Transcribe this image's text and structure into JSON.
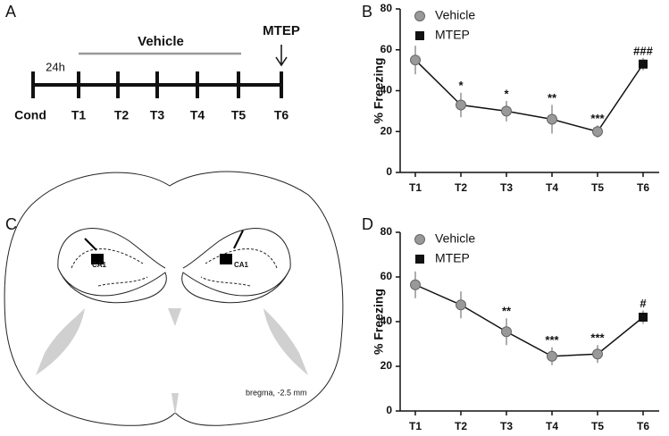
{
  "panels": [
    "A",
    "B",
    "C",
    "D"
  ],
  "timeline": {
    "labels": [
      "Cond",
      "T1",
      "T2",
      "T3",
      "T4",
      "T5",
      "T6"
    ],
    "interval": "24h",
    "treatment": "Vehicle",
    "challenge": "MTEP"
  },
  "atlas": {
    "region": "CA1",
    "coordinate": "bregma, -2.5 mm"
  },
  "chart_data": [
    {
      "type": "line",
      "ylabel": "% Freezing",
      "categories": [
        "T1",
        "T2",
        "T3",
        "T4",
        "T5",
        "T6"
      ],
      "ylim": [
        0,
        80
      ],
      "yticks": [
        0,
        20,
        40,
        60,
        80
      ],
      "series": [
        {
          "name": "Vehicle",
          "color": "#999999",
          "marker": "circle",
          "values": [
            55,
            33,
            30,
            26,
            20,
            null
          ],
          "errors": [
            7,
            6,
            5,
            7,
            3,
            null
          ]
        },
        {
          "name": "MTEP",
          "color": "#111111",
          "marker": "square",
          "values": [
            null,
            null,
            null,
            null,
            null,
            53
          ],
          "errors": [
            null,
            null,
            null,
            null,
            null,
            3
          ]
        }
      ],
      "significance": [
        null,
        "*",
        "*",
        "**",
        "***",
        "###"
      ]
    },
    {
      "type": "line",
      "ylabel": "% Freezing",
      "categories": [
        "T1",
        "T2",
        "T3",
        "T4",
        "T5",
        "T6"
      ],
      "ylim": [
        0,
        80
      ],
      "yticks": [
        0,
        20,
        40,
        60,
        80
      ],
      "series": [
        {
          "name": "Vehicle",
          "color": "#999999",
          "marker": "circle",
          "values": [
            56.5,
            47.5,
            35.5,
            24.5,
            25.5,
            null
          ],
          "errors": [
            6,
            6,
            6,
            4,
            4,
            null
          ]
        },
        {
          "name": "MTEP",
          "color": "#111111",
          "marker": "square",
          "values": [
            null,
            null,
            null,
            null,
            null,
            42
          ],
          "errors": [
            null,
            null,
            null,
            null,
            null,
            3
          ]
        }
      ],
      "significance": [
        null,
        null,
        "**",
        "***",
        "***",
        "#"
      ]
    }
  ]
}
